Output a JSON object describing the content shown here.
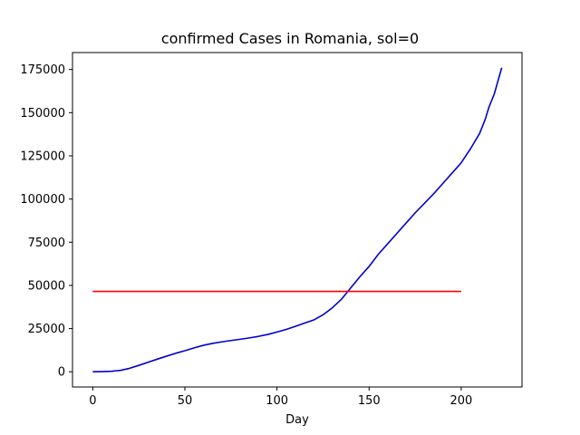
{
  "chart_data": {
    "type": "line",
    "title": "confirmed Cases in Romania, sol=0",
    "xlabel": "Day",
    "ylabel": "",
    "xlim": [
      -11,
      233
    ],
    "ylim": [
      -8800,
      184800
    ],
    "xticks": [
      0,
      50,
      100,
      150,
      200
    ],
    "yticks": [
      0,
      25000,
      50000,
      75000,
      100000,
      125000,
      150000,
      175000
    ],
    "grid": false,
    "series": [
      {
        "color": "#0000cd",
        "x": [
          0,
          5,
          10,
          15,
          20,
          25,
          30,
          35,
          40,
          45,
          50,
          55,
          60,
          65,
          70,
          75,
          80,
          85,
          90,
          95,
          100,
          105,
          110,
          115,
          120,
          125,
          130,
          135,
          140,
          145,
          150,
          155,
          160,
          165,
          170,
          175,
          180,
          185,
          190,
          195,
          200,
          205,
          210,
          213,
          215,
          218,
          220,
          222
        ],
        "y": [
          0,
          100,
          300,
          800,
          2000,
          3700,
          5500,
          7300,
          9000,
          10700,
          12200,
          13800,
          15300,
          16400,
          17300,
          18100,
          18800,
          19600,
          20500,
          21600,
          23000,
          24500,
          26300,
          28200,
          30000,
          33000,
          37000,
          42000,
          48500,
          55000,
          61000,
          68000,
          74000,
          80000,
          86000,
          92000,
          97500,
          103000,
          109000,
          115000,
          121000,
          129000,
          138000,
          146000,
          153000,
          161000,
          168500,
          176000
        ]
      },
      {
        "color": "#ff0000",
        "x": [
          0,
          200
        ],
        "y": [
          46500,
          46500
        ]
      }
    ]
  }
}
